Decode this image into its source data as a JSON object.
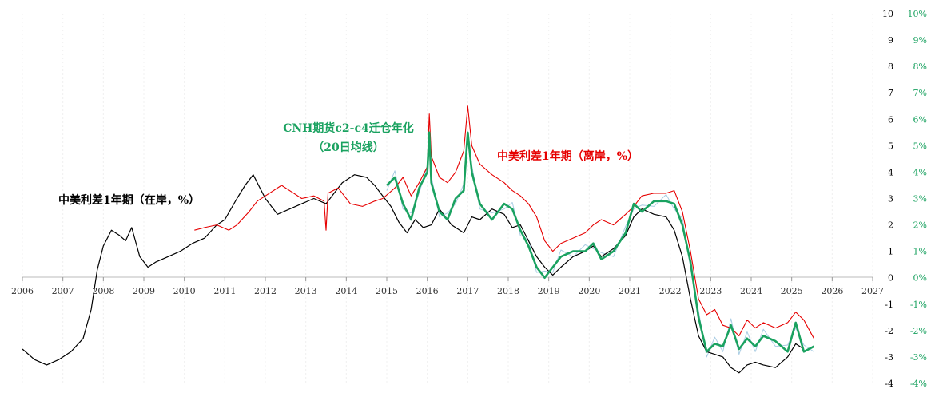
{
  "chart_data": {
    "type": "line",
    "x_axis": {
      "ticks": [
        "2006",
        "2007",
        "2008",
        "2009",
        "2010",
        "2011",
        "2012",
        "2013",
        "2014",
        "2015",
        "2016",
        "2017",
        "2018",
        "2019",
        "2020",
        "2021",
        "2022",
        "2023",
        "2024",
        "2025",
        "2026",
        "2027"
      ],
      "range": [
        2006,
        2027
      ]
    },
    "y_axis_left": {
      "ticks": [
        "10",
        "9",
        "8",
        "7",
        "6",
        "5",
        "4",
        "3",
        "2",
        "1",
        "0",
        "-1",
        "-2",
        "-3",
        "-4"
      ],
      "range": [
        -4,
        10
      ]
    },
    "y_axis_right": {
      "ticks": [
        "10%",
        "9%",
        "8%",
        "7%",
        "6%",
        "5%",
        "4%",
        "3%",
        "2%",
        "1%",
        "0%",
        "-1%",
        "-2%",
        "-3%",
        "-4%"
      ],
      "range": [
        -4,
        10
      ],
      "color": "#1aa260"
    },
    "grid": false,
    "colors": {
      "onshore": "#000000",
      "offshore": "#e60000",
      "cnh_carry": "#1aa260",
      "cnh_carry_raw": "#a9cce3"
    },
    "annotations": {
      "onshore": "中美利差1年期（在岸，%）",
      "offshore": "中美利差1年期（离岸，%）",
      "cnh_line1": "CNH期货c2-c4迁仓年化",
      "cnh_line2": "（20日均线）"
    },
    "series": [
      {
        "key": "onshore",
        "x": [
          2006.0,
          2006.3,
          2006.6,
          2006.9,
          2007.2,
          2007.5,
          2007.7,
          2007.85,
          2008.0,
          2008.2,
          2008.4,
          2008.55,
          2008.7,
          2008.9,
          2009.1,
          2009.3,
          2009.6,
          2009.9,
          2010.2,
          2010.5,
          2010.8,
          2011.0,
          2011.3,
          2011.5,
          2011.7,
          2012.0,
          2012.3,
          2012.6,
          2012.9,
          2013.2,
          2013.5,
          2013.7,
          2013.9,
          2014.2,
          2014.5,
          2014.7,
          2014.9,
          2015.1,
          2015.3,
          2015.5,
          2015.7,
          2015.9,
          2016.1,
          2016.3,
          2016.6,
          2016.9,
          2017.1,
          2017.3,
          2017.6,
          2017.9,
          2018.1,
          2018.3,
          2018.5,
          2018.7,
          2018.9,
          2019.1,
          2019.3,
          2019.6,
          2019.9,
          2020.1,
          2020.3,
          2020.6,
          2020.9,
          2021.1,
          2021.3,
          2021.6,
          2021.9,
          2022.1,
          2022.3,
          2022.5,
          2022.7,
          2022.9,
          2023.1,
          2023.3,
          2023.5,
          2023.7,
          2023.9,
          2024.1,
          2024.3,
          2024.6,
          2024.9,
          2025.1,
          2025.3
        ],
        "y": [
          -2.7,
          -3.1,
          -3.3,
          -3.1,
          -2.8,
          -2.3,
          -1.2,
          0.3,
          1.2,
          1.8,
          1.6,
          1.4,
          1.9,
          0.8,
          0.4,
          0.6,
          0.8,
          1.0,
          1.3,
          1.5,
          2.0,
          2.2,
          3.0,
          3.5,
          3.9,
          3.0,
          2.4,
          2.6,
          2.8,
          3.0,
          2.8,
          3.2,
          3.6,
          3.9,
          3.8,
          3.5,
          3.1,
          2.7,
          2.1,
          1.7,
          2.2,
          1.9,
          2.0,
          2.6,
          2.0,
          1.7,
          2.3,
          2.2,
          2.6,
          2.4,
          1.9,
          2.0,
          1.4,
          0.8,
          0.4,
          0.1,
          0.4,
          0.8,
          1.0,
          1.2,
          0.8,
          1.1,
          1.6,
          2.3,
          2.6,
          2.4,
          2.3,
          1.8,
          0.8,
          -0.8,
          -2.2,
          -2.8,
          -2.9,
          -3.0,
          -3.4,
          -3.6,
          -3.3,
          -3.2,
          -3.3,
          -3.4,
          -3.0,
          -2.5,
          -2.7
        ]
      },
      {
        "key": "offshore",
        "x": [
          2010.25,
          2010.5,
          2010.8,
          2011.1,
          2011.3,
          2011.6,
          2011.8,
          2012.1,
          2012.4,
          2012.6,
          2012.9,
          2013.2,
          2013.45,
          2013.5,
          2013.55,
          2013.8,
          2014.1,
          2014.4,
          2014.7,
          2014.9,
          2015.2,
          2015.4,
          2015.6,
          2015.8,
          2016.0,
          2016.05,
          2016.1,
          2016.3,
          2016.5,
          2016.7,
          2016.9,
          2017.0,
          2017.1,
          2017.3,
          2017.6,
          2017.9,
          2018.1,
          2018.3,
          2018.5,
          2018.7,
          2018.9,
          2019.1,
          2019.3,
          2019.6,
          2019.9,
          2020.1,
          2020.3,
          2020.6,
          2020.9,
          2021.1,
          2021.3,
          2021.6,
          2021.9,
          2022.1,
          2022.3,
          2022.5,
          2022.7,
          2022.9,
          2023.1,
          2023.3,
          2023.5,
          2023.7,
          2023.9,
          2024.1,
          2024.3,
          2024.6,
          2024.9,
          2025.1,
          2025.3,
          2025.55
        ],
        "y": [
          1.8,
          1.9,
          2.0,
          1.8,
          2.0,
          2.5,
          2.9,
          3.2,
          3.5,
          3.3,
          3.0,
          3.1,
          2.9,
          1.8,
          3.2,
          3.4,
          2.8,
          2.7,
          2.9,
          3.0,
          3.4,
          3.8,
          3.1,
          3.6,
          4.2,
          6.2,
          4.6,
          3.8,
          3.6,
          4.0,
          4.8,
          6.5,
          5.0,
          4.3,
          3.9,
          3.6,
          3.3,
          3.1,
          2.8,
          2.3,
          1.4,
          1.0,
          1.3,
          1.5,
          1.7,
          2.0,
          2.2,
          2.0,
          2.4,
          2.7,
          3.1,
          3.2,
          3.2,
          3.3,
          2.5,
          1.0,
          -0.8,
          -1.4,
          -1.2,
          -1.8,
          -1.9,
          -2.2,
          -1.6,
          -1.9,
          -1.7,
          -1.9,
          -1.7,
          -1.3,
          -1.6,
          -2.3
        ]
      },
      {
        "key": "cnh_carry",
        "x": [
          2015.0,
          2015.2,
          2015.4,
          2015.6,
          2015.8,
          2016.0,
          2016.05,
          2016.1,
          2016.3,
          2016.5,
          2016.7,
          2016.9,
          2017.0,
          2017.1,
          2017.3,
          2017.6,
          2017.9,
          2018.1,
          2018.3,
          2018.5,
          2018.7,
          2018.9,
          2019.1,
          2019.3,
          2019.6,
          2019.9,
          2020.1,
          2020.3,
          2020.6,
          2020.9,
          2021.1,
          2021.3,
          2021.6,
          2021.9,
          2022.1,
          2022.3,
          2022.5,
          2022.7,
          2022.9,
          2023.1,
          2023.3,
          2023.5,
          2023.7,
          2023.9,
          2024.1,
          2024.3,
          2024.6,
          2024.9,
          2025.1,
          2025.3,
          2025.55
        ],
        "y": [
          3.5,
          3.8,
          2.8,
          2.2,
          3.4,
          4.0,
          5.5,
          3.6,
          2.5,
          2.2,
          3.0,
          3.3,
          5.5,
          4.0,
          2.8,
          2.2,
          2.8,
          2.6,
          1.8,
          1.2,
          0.4,
          0.0,
          0.4,
          0.8,
          1.0,
          1.0,
          1.3,
          0.7,
          1.0,
          1.7,
          2.8,
          2.5,
          2.9,
          2.9,
          2.8,
          2.0,
          0.6,
          -1.5,
          -2.8,
          -2.5,
          -2.6,
          -1.8,
          -2.7,
          -2.3,
          -2.6,
          -2.2,
          -2.4,
          -2.8,
          -1.7,
          -2.8,
          -2.6
        ]
      }
    ]
  }
}
